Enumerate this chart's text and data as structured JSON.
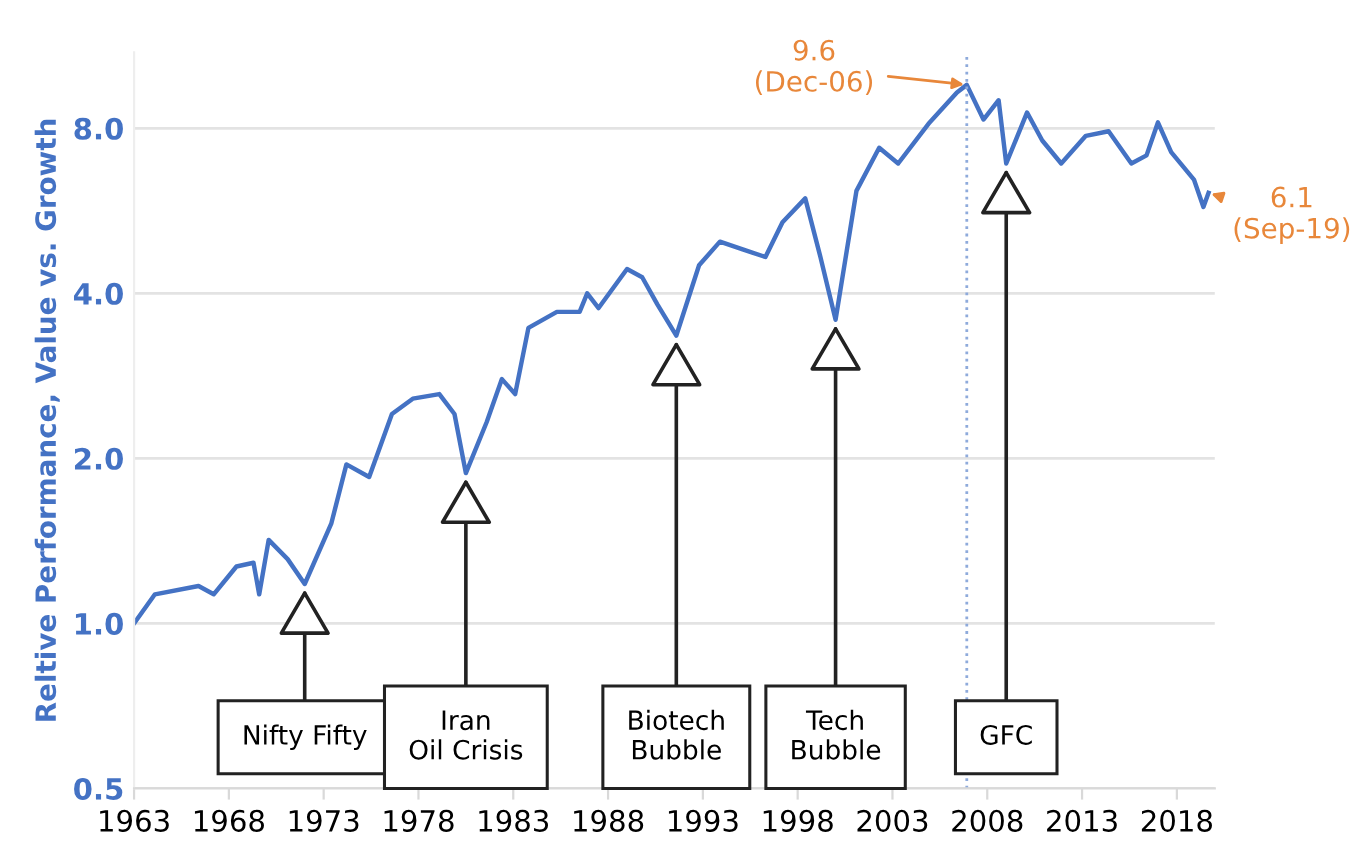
{
  "chart_data": {
    "type": "line",
    "ylabel": "Reltive Performance, Value vs. Growth",
    "series": [
      {
        "color": "#4472c4",
        "x": [
          1963.0,
          1964.1,
          1966.4,
          1967.2,
          1968.4,
          1969.3,
          1969.6,
          1970.1,
          1971.1,
          1972.0,
          1973.4,
          1974.2,
          1975.4,
          1976.6,
          1977.7,
          1979.1,
          1979.9,
          1980.5,
          1981.6,
          1982.4,
          1983.1,
          1983.8,
          1985.3,
          1986.5,
          1986.9,
          1987.5,
          1989.0,
          1989.8,
          1990.6,
          1991.6,
          1992.8,
          1993.9,
          1995.1,
          1996.3,
          1997.2,
          1998.4,
          1999.2,
          2000.0,
          2001.1,
          2002.3,
          2003.3,
          2004.9,
          2006.4,
          2006.92,
          2007.8,
          2008.6,
          2009.0,
          2010.1,
          2010.9,
          2011.9,
          2013.2,
          2014.4,
          2015.6,
          2016.4,
          2017.0,
          2017.7,
          2018.9,
          2019.4,
          2019.67
        ],
        "values": [
          1.0,
          1.13,
          1.17,
          1.13,
          1.27,
          1.29,
          1.13,
          1.42,
          1.31,
          1.18,
          1.52,
          1.95,
          1.85,
          2.41,
          2.57,
          2.62,
          2.41,
          1.88,
          2.33,
          2.79,
          2.62,
          3.46,
          3.7,
          3.7,
          4.0,
          3.76,
          4.43,
          4.28,
          3.82,
          3.35,
          4.5,
          4.97,
          4.81,
          4.66,
          5.39,
          5.96,
          4.66,
          3.58,
          6.15,
          7.37,
          6.9,
          8.15,
          9.3,
          9.6,
          8.3,
          9.0,
          6.9,
          8.55,
          7.6,
          6.9,
          7.75,
          7.9,
          6.9,
          7.14,
          8.2,
          7.24,
          6.45,
          5.75,
          6.1
        ]
      }
    ],
    "log": "y",
    "xlim": [
      1963,
      2020
    ],
    "ylim": [
      0.5,
      11
    ],
    "xticks": [
      1963,
      1968,
      1973,
      1978,
      1983,
      1988,
      1993,
      1998,
      2003,
      2008,
      2013,
      2018
    ],
    "yticks": [
      {
        "value": 0.5,
        "label": "0.5"
      },
      {
        "value": 1,
        "label": "1.0"
      },
      {
        "value": 2,
        "label": "2.0"
      },
      {
        "value": 4,
        "label": "4.0"
      },
      {
        "value": 8,
        "label": "8.0"
      }
    ],
    "grid": "y",
    "legend": false,
    "marker": "none",
    "line_style": "solid",
    "ref_lines": [
      {
        "axis": "x",
        "value": 2006.92,
        "label": null,
        "color": "#8eaadb",
        "line_style": "dotted"
      }
    ],
    "annotations": [
      {
        "text": "9.6\n(Dec-06)",
        "x": 2006.92,
        "y": 9.6
      },
      {
        "text": "6.1\n(Sep-19)",
        "x": 2019.67,
        "y": 6.1
      },
      {
        "text": "Nifty Fifty",
        "x": 1972.0,
        "y": 1.18
      },
      {
        "text": "Iran\nOil Crisis",
        "x": 1980.5,
        "y": 1.88
      },
      {
        "text": "Biotech\nBubble",
        "x": 1991.6,
        "y": 3.35
      },
      {
        "text": "Tech\nBubble",
        "x": 2000.0,
        "y": 3.58
      },
      {
        "text": "GFC",
        "x": 2009.0,
        "y": 6.9
      }
    ]
  }
}
